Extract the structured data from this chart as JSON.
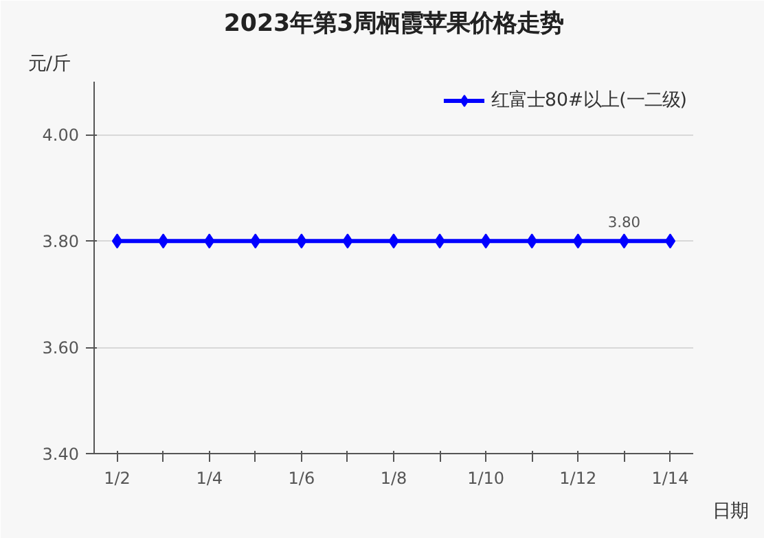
{
  "chart_data": {
    "type": "line",
    "title": "2023年第3周栖霞苹果价格走势",
    "xlabel": "日期",
    "ylabel": "元/斤",
    "categories": [
      "1/2",
      null,
      "1/4",
      null,
      "1/6",
      null,
      "1/8",
      null,
      "1/10",
      null,
      "1/12",
      null,
      "1/14"
    ],
    "series": [
      {
        "name": "红富士80#以上(一二级)",
        "color": "#0000ff",
        "values": [
          3.8,
          3.8,
          3.8,
          3.8,
          3.8,
          3.8,
          3.8,
          3.8,
          3.8,
          3.8,
          3.8,
          3.8,
          3.8
        ],
        "value_labels": [
          null,
          null,
          null,
          null,
          null,
          null,
          null,
          null,
          null,
          null,
          null,
          "3.80",
          null
        ]
      }
    ],
    "ylim": [
      3.4,
      4.1
    ],
    "yticks": [
      {
        "value": 3.4,
        "label": "3.40"
      },
      {
        "value": 3.6,
        "label": "3.60"
      },
      {
        "value": 3.8,
        "label": "3.80"
      },
      {
        "value": 4.0,
        "label": "4.00"
      }
    ],
    "grid": "y",
    "legend": "top right",
    "marker": "diamond",
    "line_style": "solid"
  }
}
